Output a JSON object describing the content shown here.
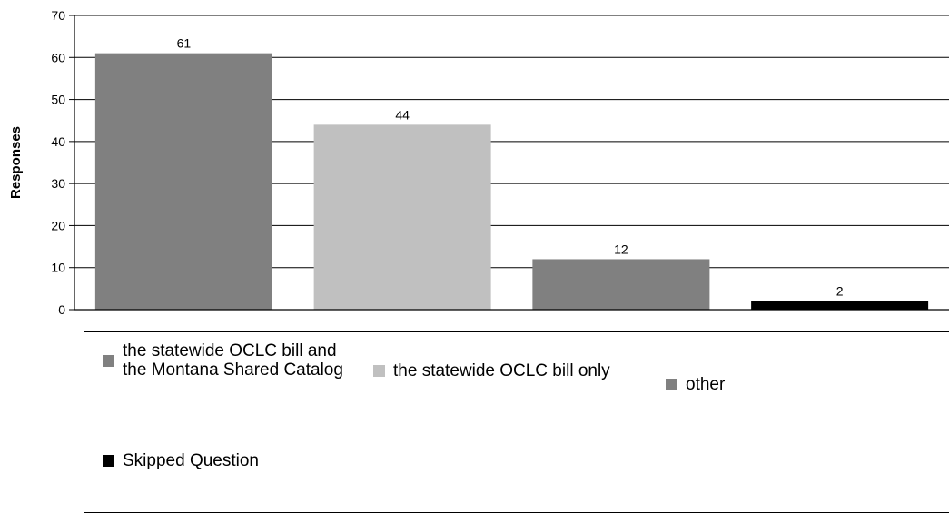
{
  "chart_data": {
    "type": "bar",
    "ylabel": "Responses",
    "xlabel": "",
    "ylim": [
      0,
      70
    ],
    "yticks": [
      0,
      10,
      20,
      30,
      40,
      50,
      60,
      70
    ],
    "grid": true,
    "legend_position": "bottom",
    "categories": [
      "the statewide OCLC bill and the Montana Shared Catalog",
      "the statewide OCLC bill only",
      "other",
      "Skipped Question"
    ],
    "values": [
      61,
      44,
      12,
      2
    ],
    "colors": [
      "#808080",
      "#c0c0c0",
      "#808080",
      "#000000"
    ]
  },
  "legend": {
    "items": [
      {
        "label": "the statewide OCLC bill and the Montana Shared Catalog",
        "color": "#808080"
      },
      {
        "label": "the statewide OCLC bill only",
        "color": "#c0c0c0"
      },
      {
        "label": "other",
        "color": "#808080"
      },
      {
        "label": "Skipped Question",
        "color": "#000000"
      }
    ]
  }
}
